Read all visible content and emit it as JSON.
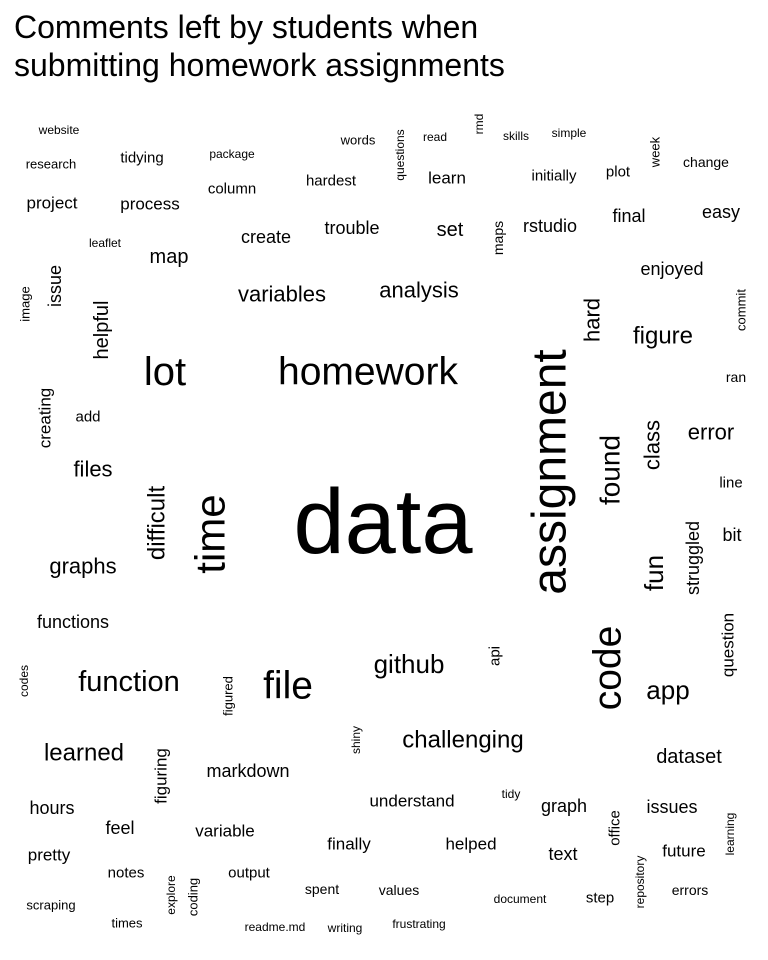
{
  "chart_data": {
    "type": "wordcloud",
    "title": "Comments left by students when\nsubmitting homework assignments",
    "color": "#000000",
    "words": [
      {
        "text": "data",
        "weight": 100,
        "orientation": "horizontal"
      },
      {
        "text": "assignment",
        "weight": 52,
        "orientation": "vertical"
      },
      {
        "text": "homework",
        "weight": 42,
        "orientation": "horizontal"
      },
      {
        "text": "time",
        "weight": 46,
        "orientation": "vertical"
      },
      {
        "text": "lot",
        "weight": 44,
        "orientation": "horizontal"
      },
      {
        "text": "file",
        "weight": 42,
        "orientation": "horizontal"
      },
      {
        "text": "code",
        "weight": 42,
        "orientation": "vertical"
      },
      {
        "text": "function",
        "weight": 32,
        "orientation": "horizontal"
      },
      {
        "text": "found",
        "weight": 30,
        "orientation": "vertical"
      },
      {
        "text": "github",
        "weight": 28,
        "orientation": "horizontal"
      },
      {
        "text": "fun",
        "weight": 28,
        "orientation": "vertical"
      },
      {
        "text": "app",
        "weight": 28,
        "orientation": "horizontal"
      },
      {
        "text": "difficult",
        "weight": 26,
        "orientation": "vertical"
      },
      {
        "text": "figure",
        "weight": 26,
        "orientation": "horizontal"
      },
      {
        "text": "learned",
        "weight": 26,
        "orientation": "horizontal"
      },
      {
        "text": "challenging",
        "weight": 26,
        "orientation": "horizontal"
      },
      {
        "text": "analysis",
        "weight": 24,
        "orientation": "horizontal"
      },
      {
        "text": "variables",
        "weight": 24,
        "orientation": "horizontal"
      },
      {
        "text": "hard",
        "weight": 24,
        "orientation": "vertical"
      },
      {
        "text": "class",
        "weight": 24,
        "orientation": "vertical"
      },
      {
        "text": "error",
        "weight": 24,
        "orientation": "horizontal"
      },
      {
        "text": "files",
        "weight": 24,
        "orientation": "horizontal"
      },
      {
        "text": "graphs",
        "weight": 24,
        "orientation": "horizontal"
      },
      {
        "text": "dataset",
        "weight": 22,
        "orientation": "horizontal"
      },
      {
        "text": "helpful",
        "weight": 22,
        "orientation": "vertical"
      },
      {
        "text": "map",
        "weight": 22,
        "orientation": "horizontal"
      },
      {
        "text": "markdown",
        "weight": 20,
        "orientation": "horizontal"
      },
      {
        "text": "set",
        "weight": 22,
        "orientation": "horizontal"
      },
      {
        "text": "create",
        "weight": 20,
        "orientation": "horizontal"
      },
      {
        "text": "functions",
        "weight": 20,
        "orientation": "horizontal"
      },
      {
        "text": "bit",
        "weight": 20,
        "orientation": "horizontal"
      },
      {
        "text": "hours",
        "weight": 20,
        "orientation": "horizontal"
      },
      {
        "text": "struggled",
        "weight": 20,
        "orientation": "vertical"
      },
      {
        "text": "issue",
        "weight": 20,
        "orientation": "vertical"
      },
      {
        "text": "feel",
        "weight": 20,
        "orientation": "horizontal"
      },
      {
        "text": "graph",
        "weight": 20,
        "orientation": "horizontal"
      },
      {
        "text": "issues",
        "weight": 20,
        "orientation": "horizontal"
      },
      {
        "text": "text",
        "weight": 20,
        "orientation": "horizontal"
      },
      {
        "text": "easy",
        "weight": 20,
        "orientation": "horizontal"
      },
      {
        "text": "final",
        "weight": 20,
        "orientation": "horizontal"
      },
      {
        "text": "enjoyed",
        "weight": 20,
        "orientation": "horizontal"
      },
      {
        "text": "rstudio",
        "weight": 20,
        "orientation": "horizontal"
      },
      {
        "text": "trouble",
        "weight": 20,
        "orientation": "horizontal"
      },
      {
        "text": "figuring",
        "weight": 18,
        "orientation": "vertical"
      },
      {
        "text": "question",
        "weight": 18,
        "orientation": "vertical"
      },
      {
        "text": "understand",
        "weight": 18,
        "orientation": "horizontal"
      },
      {
        "text": "variable",
        "weight": 18,
        "orientation": "horizontal"
      },
      {
        "text": "finally",
        "weight": 18,
        "orientation": "horizontal"
      },
      {
        "text": "helped",
        "weight": 18,
        "orientation": "horizontal"
      },
      {
        "text": "future",
        "weight": 18,
        "orientation": "horizontal"
      },
      {
        "text": "pretty",
        "weight": 18,
        "orientation": "horizontal"
      },
      {
        "text": "creating",
        "weight": 18,
        "orientation": "vertical"
      },
      {
        "text": "process",
        "weight": 18,
        "orientation": "horizontal"
      },
      {
        "text": "project",
        "weight": 18,
        "orientation": "horizontal"
      },
      {
        "text": "hardest",
        "weight": 16,
        "orientation": "horizontal"
      },
      {
        "text": "learn",
        "weight": 18,
        "orientation": "horizontal"
      },
      {
        "text": "line",
        "weight": 16,
        "orientation": "horizontal"
      },
      {
        "text": "notes",
        "weight": 16,
        "orientation": "horizontal"
      },
      {
        "text": "output",
        "weight": 16,
        "orientation": "horizontal"
      },
      {
        "text": "office",
        "weight": 16,
        "orientation": "vertical"
      },
      {
        "text": "step",
        "weight": 16,
        "orientation": "horizontal"
      },
      {
        "text": "api",
        "weight": 16,
        "orientation": "vertical"
      },
      {
        "text": "column",
        "weight": 16,
        "orientation": "horizontal"
      },
      {
        "text": "tidying",
        "weight": 16,
        "orientation": "horizontal"
      },
      {
        "text": "initially",
        "weight": 16,
        "orientation": "horizontal"
      },
      {
        "text": "plot",
        "weight": 16,
        "orientation": "horizontal"
      },
      {
        "text": "change",
        "weight": 15,
        "orientation": "horizontal"
      },
      {
        "text": "maps",
        "weight": 15,
        "orientation": "vertical"
      },
      {
        "text": "add",
        "weight": 16,
        "orientation": "horizontal"
      },
      {
        "text": "spent",
        "weight": 15,
        "orientation": "horizontal"
      },
      {
        "text": "values",
        "weight": 15,
        "orientation": "horizontal"
      },
      {
        "text": "errors",
        "weight": 15,
        "orientation": "horizontal"
      },
      {
        "text": "ran",
        "weight": 15,
        "orientation": "horizontal"
      },
      {
        "text": "commit",
        "weight": 14,
        "orientation": "vertical"
      },
      {
        "text": "figured",
        "weight": 14,
        "orientation": "vertical"
      },
      {
        "text": "image",
        "weight": 14,
        "orientation": "vertical"
      },
      {
        "text": "coding",
        "weight": 14,
        "orientation": "vertical"
      },
      {
        "text": "times",
        "weight": 14,
        "orientation": "horizontal"
      },
      {
        "text": "scraping",
        "weight": 14,
        "orientation": "horizontal"
      },
      {
        "text": "research",
        "weight": 14,
        "orientation": "horizontal"
      },
      {
        "text": "words",
        "weight": 14,
        "orientation": "horizontal"
      },
      {
        "text": "week",
        "weight": 14,
        "orientation": "vertical"
      },
      {
        "text": "repository",
        "weight": 13,
        "orientation": "vertical"
      },
      {
        "text": "learning",
        "weight": 13,
        "orientation": "vertical"
      },
      {
        "text": "writing",
        "weight": 13,
        "orientation": "horizontal"
      },
      {
        "text": "tidy",
        "weight": 13,
        "orientation": "horizontal"
      },
      {
        "text": "document",
        "weight": 13,
        "orientation": "horizontal"
      },
      {
        "text": "read",
        "weight": 13,
        "orientation": "horizontal"
      },
      {
        "text": "skills",
        "weight": 13,
        "orientation": "horizontal"
      },
      {
        "text": "simple",
        "weight": 13,
        "orientation": "horizontal"
      },
      {
        "text": "package",
        "weight": 13,
        "orientation": "horizontal"
      },
      {
        "text": "website",
        "weight": 13,
        "orientation": "horizontal"
      },
      {
        "text": "leaflet",
        "weight": 13,
        "orientation": "horizontal"
      },
      {
        "text": "explore",
        "weight": 12,
        "orientation": "vertical"
      },
      {
        "text": "shiny",
        "weight": 12,
        "orientation": "vertical"
      },
      {
        "text": "codes",
        "weight": 12,
        "orientation": "vertical"
      },
      {
        "text": "questions",
        "weight": 12,
        "orientation": "vertical"
      },
      {
        "text": "rmd",
        "weight": 12,
        "orientation": "vertical"
      },
      {
        "text": "readme.md",
        "weight": 12,
        "orientation": "horizontal"
      },
      {
        "text": "frustrating",
        "weight": 12,
        "orientation": "horizontal"
      }
    ]
  }
}
